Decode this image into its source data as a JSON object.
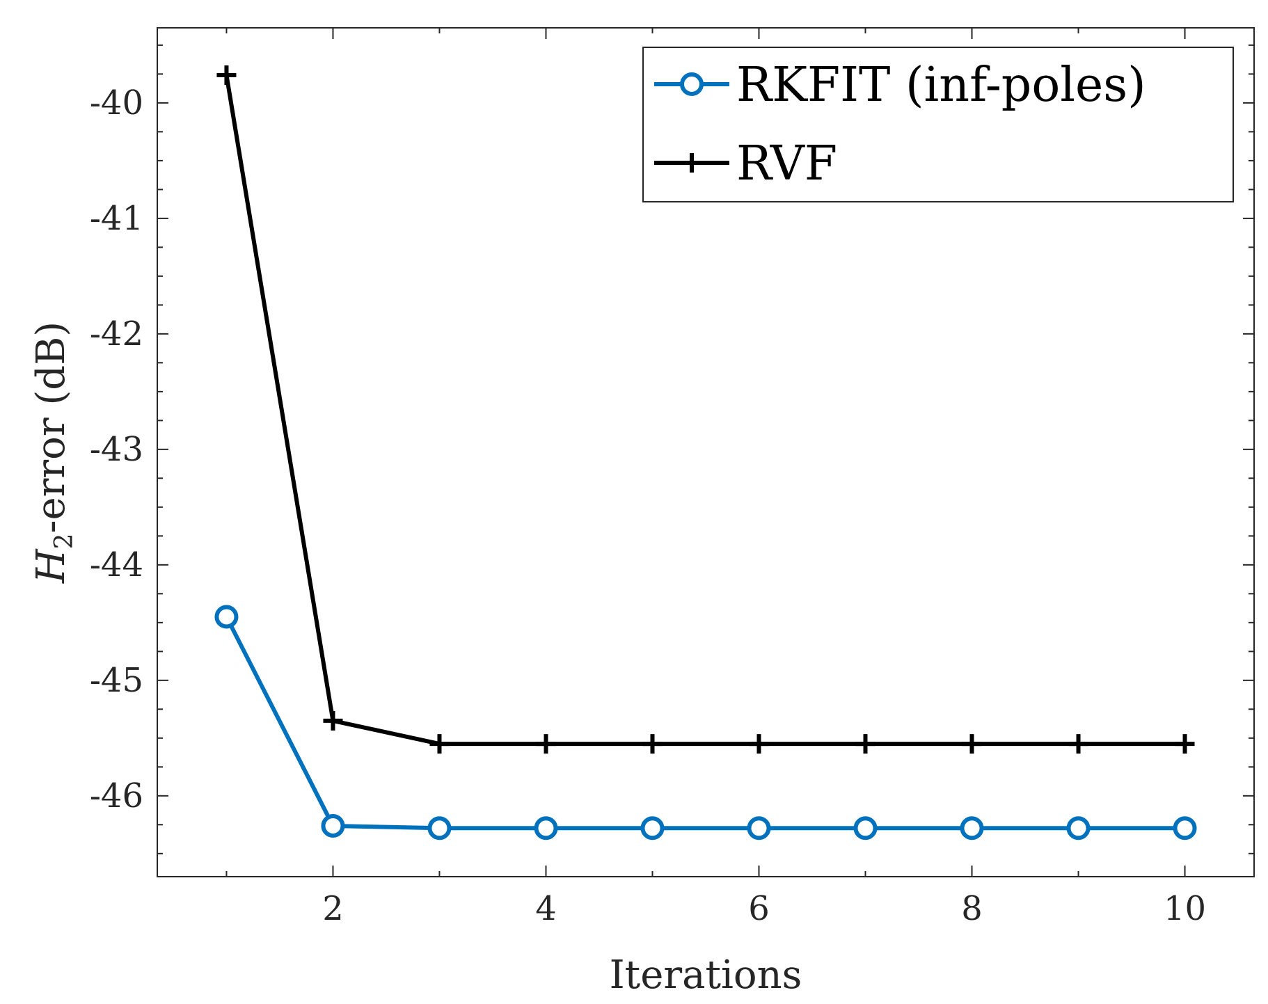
{
  "chart_data": {
    "type": "line",
    "xlabel": "Iterations",
    "ylabel_prefix": "H",
    "ylabel_subscript": "2",
    "ylabel_suffix": "-error (dB)",
    "xlim": [
      0.35,
      10.65
    ],
    "ylim": [
      -46.7,
      -39.35
    ],
    "xticks": [
      2,
      4,
      6,
      8,
      10
    ],
    "xtick_labels": [
      "2",
      "4",
      "6",
      "8",
      "10"
    ],
    "yticks": [
      -46,
      -45,
      -44,
      -43,
      -42,
      -41,
      -40
    ],
    "ytick_labels": [
      "-46",
      "-45",
      "-44",
      "-43",
      "-42",
      "-41",
      "-40"
    ],
    "grid": false,
    "legend_position": "top-right",
    "x": [
      1,
      2,
      3,
      4,
      5,
      6,
      7,
      8,
      9,
      10
    ],
    "series": [
      {
        "name": "RKFIT (inf-poles)",
        "color": "#0072BD",
        "marker": "circle",
        "values": [
          -44.45,
          -46.26,
          -46.28,
          -46.28,
          -46.28,
          -46.28,
          -46.28,
          -46.28,
          -46.28,
          -46.28
        ]
      },
      {
        "name": "RVF",
        "color": "#000000",
        "marker": "plus",
        "values": [
          -39.76,
          -45.35,
          -45.55,
          -45.55,
          -45.55,
          -45.55,
          -45.55,
          -45.55,
          -45.55,
          -45.55
        ]
      }
    ]
  }
}
